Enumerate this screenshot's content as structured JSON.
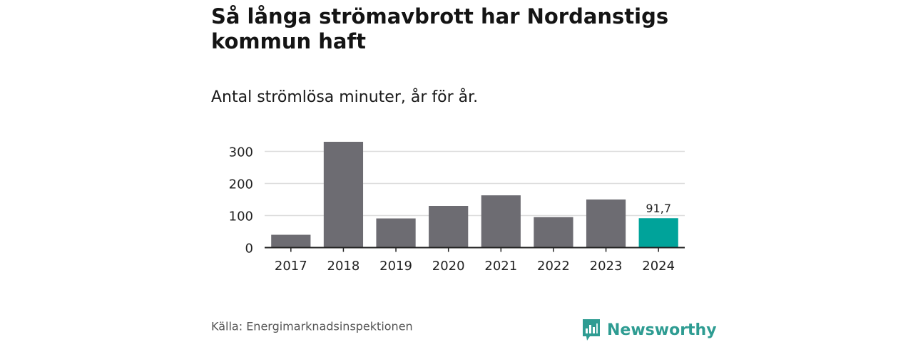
{
  "header": {
    "title": "Så långa strömavbrott har Nordanstigs kommun haft",
    "subtitle": "Antal strömlösa minuter, år för år."
  },
  "footer": {
    "source": "Källa: Energimarknadsinspektionen",
    "brand": "Newsworthy",
    "brand_icon": "bar-chart-logo-icon"
  },
  "colors": {
    "bar": "#6d6c72",
    "highlight": "#00a39a",
    "grid": "#dddddd",
    "axis": "#222222",
    "brand": "#2e9c92"
  },
  "chart_data": {
    "type": "bar",
    "title": "Så långa strömavbrott har Nordanstigs kommun haft",
    "subtitle": "Antal strömlösa minuter, år för år.",
    "xlabel": "",
    "ylabel": "",
    "categories": [
      "2017",
      "2018",
      "2019",
      "2020",
      "2021",
      "2022",
      "2023",
      "2024"
    ],
    "values": [
      40,
      330,
      91,
      130,
      163,
      95,
      150,
      91.7
    ],
    "ylim": [
      0,
      300
    ],
    "yticks": [
      0,
      100,
      200,
      300
    ],
    "ytick_labels": [
      "0",
      "100",
      "200",
      "300"
    ],
    "grid": true,
    "highlight_index": 7,
    "annotations": [
      {
        "category": "2024",
        "text": "91,7"
      }
    ]
  }
}
